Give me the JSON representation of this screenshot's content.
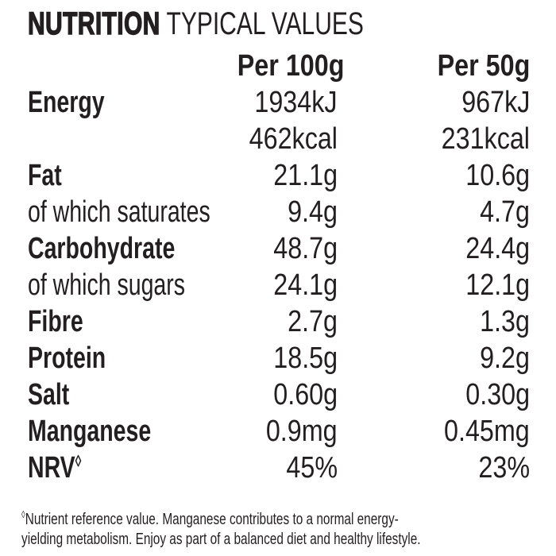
{
  "page": {
    "title": {
      "bold": "NUTRITION",
      "regular": "TYPICAL VALUES"
    },
    "columns": {
      "per100": "Per 100g",
      "per50": "Per 50g"
    },
    "rows": [
      {
        "label": "Energy",
        "label_sup": "",
        "bold": true,
        "per100": "1934kJ",
        "per50": "967kJ"
      },
      {
        "label": "",
        "label_sup": "",
        "bold": false,
        "per100": "462kcal",
        "per50": "231kcal"
      },
      {
        "label": "Fat",
        "label_sup": "",
        "bold": true,
        "per100": "21.1g",
        "per50": "10.6g"
      },
      {
        "label": "of which saturates",
        "label_sup": "",
        "bold": false,
        "per100": "9.4g",
        "per50": "4.7g"
      },
      {
        "label": "Carbohydrate",
        "label_sup": "",
        "bold": true,
        "per100": "48.7g",
        "per50": "24.4g"
      },
      {
        "label": "of which sugars",
        "label_sup": "",
        "bold": false,
        "per100": "24.1g",
        "per50": "12.1g"
      },
      {
        "label": "Fibre",
        "label_sup": "",
        "bold": true,
        "per100": "2.7g",
        "per50": "1.3g"
      },
      {
        "label": "Protein",
        "label_sup": "",
        "bold": true,
        "per100": "18.5g",
        "per50": "9.2g"
      },
      {
        "label": "Salt",
        "label_sup": "",
        "bold": true,
        "per100": "0.60g",
        "per50": "0.30g"
      },
      {
        "label": "Manganese",
        "label_sup": "",
        "bold": true,
        "per100": "0.9mg",
        "per50": "0.45mg"
      },
      {
        "label": "NRV",
        "label_sup": "◊",
        "bold": true,
        "per100": "45%",
        "per50": "23%"
      }
    ],
    "footnote": {
      "symbol": "◊",
      "lines": [
        "Nutrient reference value. Manganese contributes to a normal energy-",
        "yielding metabolism. Enjoy as part of a balanced diet and healthy lifestyle."
      ]
    },
    "colors": {
      "text": "#231f20",
      "bg": "#ffffff"
    }
  }
}
